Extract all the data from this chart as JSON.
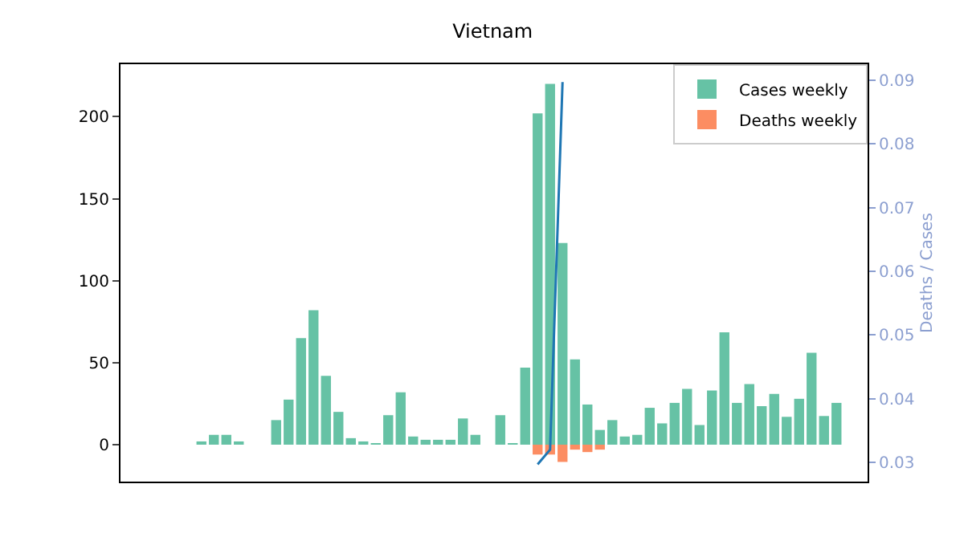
{
  "chart_data": {
    "type": "bar",
    "title": "Vietnam",
    "y2label": "Deaths / Cases",
    "categories": [
      null,
      null,
      null,
      null,
      null,
      null,
      null,
      null,
      null,
      null,
      null,
      null,
      null,
      null,
      null,
      null,
      null,
      null,
      null,
      null,
      null,
      null,
      null,
      null,
      null,
      null,
      null,
      null,
      null,
      null,
      null,
      null,
      null,
      null,
      null,
      null,
      null,
      null,
      null,
      null,
      null,
      null,
      null,
      null,
      null,
      null,
      null,
      null,
      null,
      null,
      null,
      null,
      null,
      null,
      null,
      null,
      null,
      null,
      null,
      null
    ],
    "series": [
      {
        "name": "Cases weekly",
        "color": "#66c2a5",
        "values": [
          null,
          null,
          null,
          null,
          null,
          null,
          2,
          6,
          6,
          2,
          0,
          0,
          15,
          27.5,
          65,
          82,
          42,
          20,
          4,
          2,
          1,
          18,
          32,
          5,
          3,
          3,
          3,
          16,
          6,
          0,
          18,
          1,
          47,
          202,
          220,
          123,
          52,
          24.5,
          9,
          15,
          5,
          6,
          22.5,
          13,
          25.5,
          34,
          12,
          33,
          68.5,
          25.5,
          37,
          23.5,
          31,
          17,
          28,
          56,
          17.5,
          25.5,
          null,
          null
        ]
      },
      {
        "name": "Deaths weekly",
        "color": "#fc8d62",
        "values": [
          null,
          null,
          null,
          null,
          null,
          null,
          null,
          null,
          null,
          null,
          null,
          null,
          null,
          null,
          null,
          null,
          null,
          null,
          null,
          null,
          null,
          null,
          null,
          null,
          null,
          null,
          null,
          null,
          null,
          null,
          null,
          null,
          null,
          -6,
          -6,
          -10.5,
          -3,
          -4.5,
          -3,
          null,
          null,
          null,
          null,
          null,
          null,
          null,
          null,
          null,
          null,
          null,
          null,
          null,
          null,
          null,
          null,
          null,
          null,
          null,
          null,
          null
        ]
      },
      {
        "type": "line",
        "axis": "y2",
        "color": "#1f77b4",
        "values": [
          null,
          null,
          null,
          null,
          null,
          null,
          null,
          null,
          null,
          null,
          null,
          null,
          null,
          null,
          null,
          null,
          null,
          null,
          null,
          null,
          null,
          null,
          null,
          null,
          null,
          null,
          null,
          null,
          null,
          null,
          null,
          null,
          null,
          0.0297,
          0.032,
          0.0897,
          null,
          null,
          null,
          null,
          null,
          null,
          null,
          null,
          null,
          null,
          null,
          null,
          null,
          null,
          null,
          null,
          null,
          null,
          null,
          null,
          null,
          null,
          null,
          null
        ]
      }
    ],
    "ylim": [
      -22.5,
      232
    ],
    "yticks": [
      0,
      50,
      100,
      150,
      200
    ],
    "y2lim": [
      0.027,
      0.0925
    ],
    "y2ticks": [
      0.03,
      0.04,
      0.05,
      0.06,
      0.07,
      0.08,
      0.09
    ],
    "tick_labels": "y",
    "legend": "top right",
    "grid": false
  }
}
